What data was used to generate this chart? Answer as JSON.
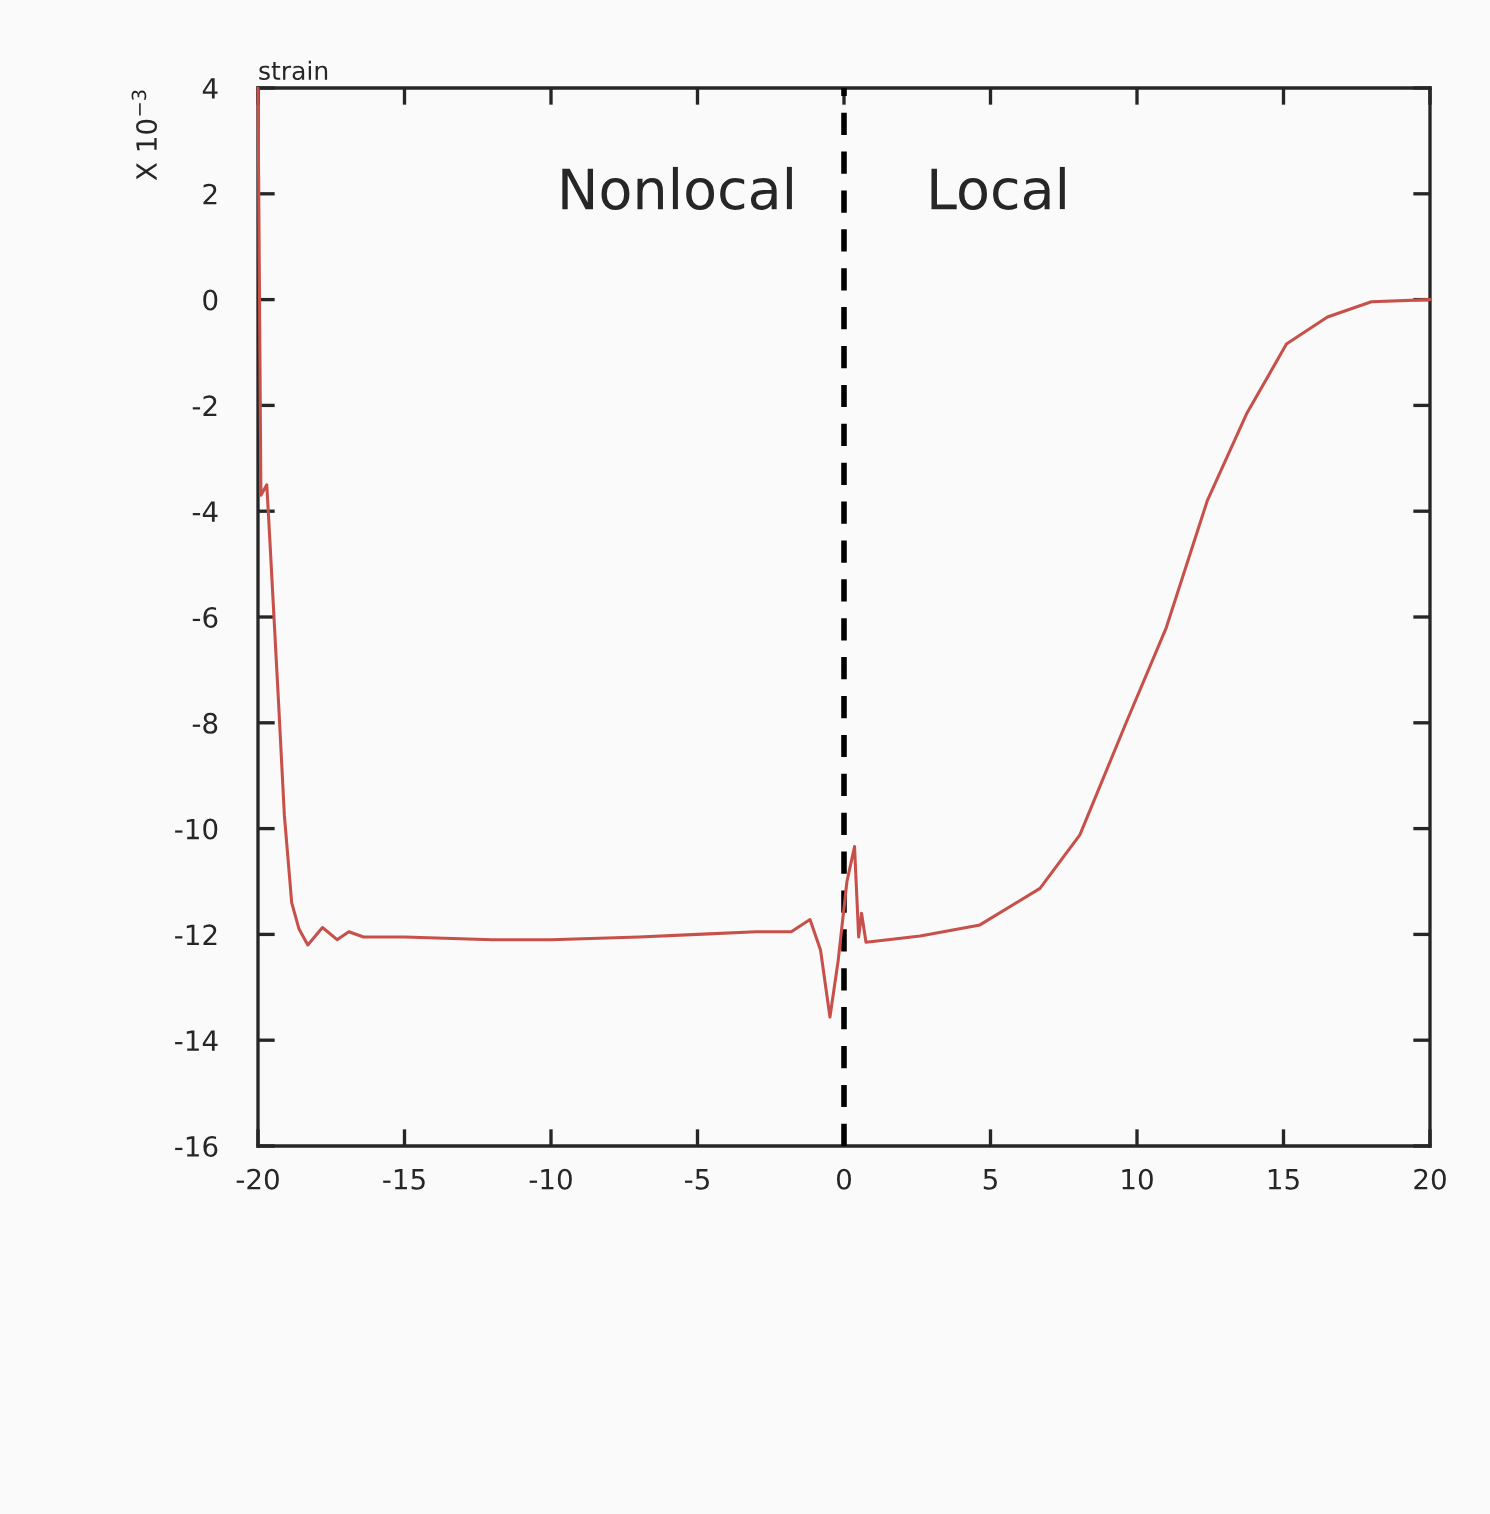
{
  "chart_data": {
    "type": "line",
    "title": "strain",
    "ylabel": "X 10$^{−3}$",
    "annotations": [
      "Nonlocal",
      "Local"
    ],
    "series": [
      {
        "color": "#c8504a",
        "x": [
          -20,
          -19.9,
          -19.8,
          -19.7,
          -19.6,
          -19.3,
          -19.1,
          -18.85,
          -18.6,
          -18.3,
          -17.8,
          -17.3,
          -16.9,
          -16.4,
          -15,
          -12,
          -10,
          -7,
          -5,
          -3,
          -1.8,
          -1.16,
          -0.8,
          -0.48,
          -0.2,
          0.1,
          0.36,
          0.5,
          0.6,
          0.75,
          1.5,
          2.6,
          4.64,
          6.69,
          8.05,
          9.65,
          11.0,
          12.4,
          13.74,
          15.1,
          16.5,
          18.0,
          20
        ],
        "values": [
          4,
          -3.7,
          -3.6,
          -3.5,
          -4.5,
          -7.6,
          -9.75,
          -11.4,
          -11.9,
          -12.2,
          -11.87,
          -12.1,
          -11.95,
          -12.05,
          -12.05,
          -12.1,
          -12.1,
          -12.05,
          -12.0,
          -11.95,
          -11.95,
          -11.72,
          -12.3,
          -13.56,
          -12.5,
          -11.0,
          -10.34,
          -12.05,
          -11.6,
          -12.15,
          -12.1,
          -12.03,
          -11.82,
          -11.13,
          -10.12,
          -7.97,
          -6.2,
          -3.8,
          -2.16,
          -0.84,
          -0.33,
          -0.04,
          0
        ]
      }
    ],
    "xlim": [
      -20,
      20
    ],
    "xticks": [
      -20,
      -15,
      -10,
      -5,
      0,
      5,
      10,
      15,
      20
    ],
    "ylim": [
      -16,
      4
    ],
    "yticks": [
      -16,
      -14,
      -12,
      -10,
      -8,
      -6,
      -4,
      -2,
      0,
      2,
      4
    ],
    "ref_lines": [
      {
        "axis": "x",
        "value": 0,
        "color": "#000000",
        "line_style": "dashed"
      }
    ],
    "grid": false,
    "legend": false
  }
}
